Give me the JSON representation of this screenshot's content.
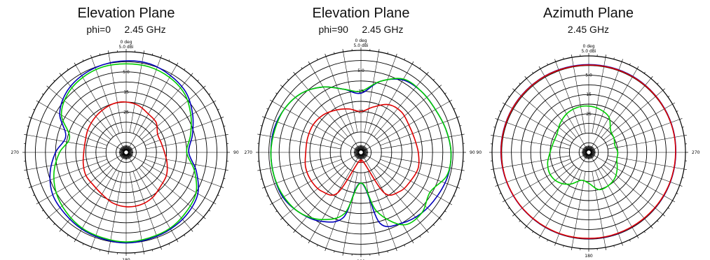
{
  "chart_data": [
    {
      "type": "polar",
      "title": "Elevation Plane",
      "subtitle": "phi=0     2.45 GHz",
      "top_label_line1": "0 deg",
      "top_label_line2": "5.0   dBi",
      "angle_labels": {
        "right": "90",
        "left": "270",
        "bottom": "180"
      },
      "ring_labels": [
        "-5.0",
        "-15",
        "-25"
      ],
      "r_max_dbi": 5,
      "r_min_dbi": -45,
      "angles_deg": [
        0,
        15,
        30,
        45,
        60,
        75,
        90,
        105,
        120,
        135,
        150,
        165,
        180,
        195,
        210,
        225,
        240,
        255,
        270,
        285,
        300,
        315,
        330,
        345
      ],
      "series": [
        {
          "color": "#0000bb",
          "values": [
            0.5,
            0.5,
            -1,
            -3,
            -7,
            -11,
            -14,
            -9,
            -4,
            -2,
            -1,
            -0.5,
            0,
            -0.5,
            -1,
            -2,
            -3,
            -6,
            -10,
            -14,
            -7,
            -3,
            -1,
            0
          ]
        },
        {
          "color": "#00cc00",
          "values": [
            -1,
            -1,
            -2,
            -4,
            -8,
            -12,
            -15,
            -10,
            -5,
            -3,
            -1.5,
            -1,
            -0.5,
            -1,
            -1.5,
            -3,
            -5,
            -8,
            -12,
            -16,
            -8,
            -4,
            -2,
            -1
          ]
        },
        {
          "color": "#dd0000",
          "values": [
            -20,
            -21,
            -23,
            -24,
            -27,
            -27,
            -26,
            -24,
            -22,
            -21,
            -19,
            -18,
            -18,
            -19,
            -21,
            -22,
            -22,
            -23,
            -24,
            -24,
            -23,
            -22,
            -21,
            -20
          ]
        }
      ]
    },
    {
      "type": "polar",
      "title": "Elevation Plane",
      "subtitle": "phi=90     2.45 GHz",
      "top_label_line1": "0 deg",
      "top_label_line2": "5.0   dBi",
      "angle_labels": {
        "right": "90   90",
        "left": "270",
        "bottom": "180"
      },
      "ring_labels": [
        "-5.0",
        "-15",
        "-25"
      ],
      "r_max_dbi": 5,
      "r_min_dbi": -45,
      "angles_deg": [
        0,
        15,
        30,
        45,
        60,
        75,
        90,
        105,
        120,
        135,
        150,
        165,
        180,
        195,
        210,
        225,
        240,
        255,
        270,
        285,
        300,
        315,
        330,
        345
      ],
      "series": [
        {
          "color": "#0000bb",
          "values": [
            -16,
            -9,
            -4,
            -3,
            -3,
            -2,
            -1,
            -1,
            -2,
            -3,
            -5,
            -9,
            -30,
            -12,
            -6,
            -3,
            -1,
            -1,
            -1,
            -1,
            -2,
            -4,
            -8,
            -13
          ]
        },
        {
          "color": "#00cc00",
          "values": [
            -15,
            -9,
            -3.5,
            -3,
            -3,
            -2,
            -1,
            -1.5,
            -6,
            -3,
            -4,
            -15,
            -30,
            -14,
            -7,
            -3,
            -1.5,
            -1,
            -1,
            -1.5,
            -2,
            -4,
            -8,
            -13
          ]
        },
        {
          "color": "#dd0000",
          "values": [
            -25,
            -22,
            -18,
            -17,
            -18,
            -18,
            -17,
            -16,
            -17,
            -18,
            -22,
            -40,
            -40,
            -40,
            -22,
            -18,
            -17,
            -17,
            -18,
            -18,
            -18,
            -19,
            -21,
            -23
          ]
        }
      ]
    },
    {
      "type": "polar",
      "title": "Azimuth Plane",
      "subtitle": "2.45 GHz",
      "top_label_line1": "0 deg",
      "top_label_line2": "5.0   dBi",
      "angle_labels": {
        "right": "270",
        "left": "",
        "bottom": "180"
      },
      "ring_labels": [
        "-5.0",
        "-15",
        "-25"
      ],
      "r_max_dbi": 5,
      "r_min_dbi": -45,
      "angles_deg": [
        0,
        15,
        30,
        45,
        60,
        75,
        90,
        105,
        120,
        135,
        150,
        165,
        180,
        195,
        210,
        225,
        240,
        255,
        270,
        285,
        300,
        315,
        330,
        345
      ],
      "series": [
        {
          "color": "#0000bb",
          "values": [
            0.5,
            0.5,
            0.5,
            0.4,
            0.3,
            0.2,
            0,
            -0.1,
            -0.2,
            -0.3,
            -0.4,
            -0.3,
            -0.3,
            -0.2,
            -0.2,
            -0.1,
            0,
            0.2,
            0.4,
            0.5,
            0.6,
            0.6,
            0.6,
            0.5
          ]
        },
        {
          "color": "#00cc00",
          "values": [
            -21,
            -22,
            -24,
            -29,
            -30,
            -31,
            -30,
            -30,
            -28,
            -26,
            -25,
            -25,
            -29,
            -30,
            -26,
            -23,
            -22,
            -23,
            -25,
            -26,
            -26,
            -24,
            -22,
            -21
          ]
        },
        {
          "color": "#dd0000",
          "values": [
            0.3,
            0.3,
            0.3,
            0.3,
            0.2,
            0.1,
            -0.1,
            -0.2,
            -0.3,
            -0.4,
            -0.5,
            -0.4,
            -0.4,
            -0.3,
            -0.3,
            -0.2,
            -0.1,
            0.1,
            0.3,
            0.4,
            0.5,
            0.5,
            0.5,
            0.3
          ]
        }
      ]
    }
  ]
}
